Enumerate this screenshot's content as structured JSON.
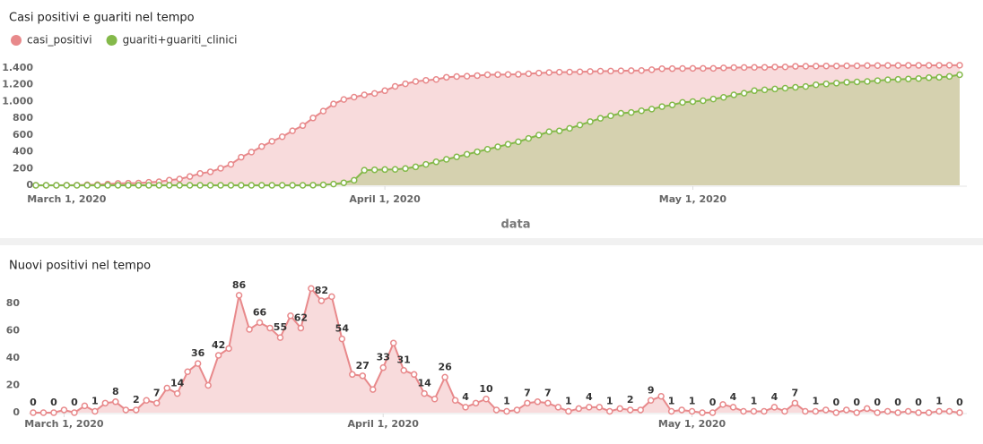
{
  "chart_data": [
    {
      "type": "area",
      "title": "Casi positivi e guariti nel tempo",
      "xlabel": "data",
      "x": [
        "2020-02-27",
        "2020-02-28",
        "2020-02-29",
        "2020-03-01",
        "2020-03-02",
        "2020-03-03",
        "2020-03-04",
        "2020-03-05",
        "2020-03-06",
        "2020-03-07",
        "2020-03-08",
        "2020-03-09",
        "2020-03-10",
        "2020-03-11",
        "2020-03-12",
        "2020-03-13",
        "2020-03-14",
        "2020-03-15",
        "2020-03-16",
        "2020-03-17",
        "2020-03-18",
        "2020-03-19",
        "2020-03-20",
        "2020-03-21",
        "2020-03-22",
        "2020-03-23",
        "2020-03-24",
        "2020-03-25",
        "2020-03-26",
        "2020-03-27",
        "2020-03-28",
        "2020-03-29",
        "2020-03-30",
        "2020-03-31",
        "2020-04-01",
        "2020-04-02",
        "2020-04-03",
        "2020-04-04",
        "2020-04-05",
        "2020-04-06",
        "2020-04-07",
        "2020-04-08",
        "2020-04-09",
        "2020-04-10",
        "2020-04-11",
        "2020-04-12",
        "2020-04-13",
        "2020-04-14",
        "2020-04-15",
        "2020-04-16",
        "2020-04-17",
        "2020-04-18",
        "2020-04-19",
        "2020-04-20",
        "2020-04-21",
        "2020-04-22",
        "2020-04-23",
        "2020-04-24",
        "2020-04-25",
        "2020-04-26",
        "2020-04-27",
        "2020-04-28",
        "2020-04-29",
        "2020-04-30",
        "2020-05-01",
        "2020-05-02",
        "2020-05-03",
        "2020-05-04",
        "2020-05-05",
        "2020-05-06",
        "2020-05-07",
        "2020-05-08",
        "2020-05-09",
        "2020-05-10",
        "2020-05-11",
        "2020-05-12",
        "2020-05-13",
        "2020-05-14",
        "2020-05-15",
        "2020-05-16",
        "2020-05-17",
        "2020-05-18",
        "2020-05-19",
        "2020-05-20",
        "2020-05-21",
        "2020-05-22",
        "2020-05-23",
        "2020-05-24",
        "2020-05-25",
        "2020-05-26",
        "2020-05-27"
      ],
      "xlim": [
        "2020-02-27",
        "2020-05-27"
      ],
      "xticks": [
        {
          "value": "2020-03-01",
          "label": "March 1, 2020"
        },
        {
          "value": "2020-04-01",
          "label": "April 1, 2020"
        },
        {
          "value": "2020-05-01",
          "label": "May 1, 2020"
        }
      ],
      "ylim": [
        0,
        1550
      ],
      "yticks": [
        0,
        200,
        400,
        600,
        800,
        {
          "value": 1000,
          "label": "1.000"
        },
        {
          "value": 1200,
          "label": "1.200"
        },
        {
          "value": 1400,
          "label": "1.400"
        }
      ],
      "legend": "top-left",
      "series": [
        {
          "name": "casi_positivi",
          "color": "#e8898b",
          "values": [
            0,
            0,
            0,
            2,
            2,
            7,
            8,
            15,
            23,
            25,
            27,
            36,
            43,
            61,
            75,
            105,
            141,
            161,
            203,
            250,
            336,
            397,
            463,
            525,
            580,
            651,
            713,
            804,
            886,
            971,
            1025,
            1053,
            1080,
            1097,
            1130,
            1181,
            1212,
            1240,
            1254,
            1264,
            1290,
            1299,
            1303,
            1310,
            1320,
            1322,
            1323,
            1325,
            1332,
            1340,
            1347,
            1351,
            1352,
            1355,
            1359,
            1363,
            1364,
            1367,
            1369,
            1371,
            1380,
            1392,
            1393,
            1395,
            1396,
            1396,
            1396,
            1402,
            1406,
            1407,
            1408,
            1409,
            1413,
            1414,
            1421,
            1422,
            1423,
            1425,
            1425,
            1427,
            1427,
            1430,
            1430,
            1431,
            1431,
            1432,
            1432,
            1432,
            1433,
            1434,
            1434
          ]
        },
        {
          "name": "guariti+guariti_clinici",
          "color": "#84b94a",
          "values": [
            0,
            0,
            0,
            0,
            0,
            0,
            0,
            0,
            0,
            0,
            0,
            0,
            0,
            0,
            0,
            0,
            0,
            0,
            0,
            0,
            0,
            0,
            0,
            0,
            0,
            0,
            0,
            2,
            5,
            15,
            30,
            60,
            180,
            185,
            188,
            190,
            200,
            220,
            250,
            280,
            310,
            340,
            370,
            400,
            430,
            460,
            490,
            520,
            560,
            600,
            640,
            650,
            680,
            720,
            760,
            800,
            830,
            860,
            870,
            890,
            910,
            940,
            960,
            990,
            1000,
            1010,
            1030,
            1050,
            1080,
            1100,
            1130,
            1140,
            1150,
            1160,
            1170,
            1180,
            1200,
            1210,
            1220,
            1230,
            1235,
            1240,
            1250,
            1260,
            1265,
            1270,
            1275,
            1285,
            1290,
            1300,
            1320
          ]
        }
      ]
    },
    {
      "type": "area",
      "title": "Nuovi positivi nel tempo",
      "x": [
        "2020-02-27",
        "2020-02-28",
        "2020-02-29",
        "2020-03-01",
        "2020-03-02",
        "2020-03-03",
        "2020-03-04",
        "2020-03-05",
        "2020-03-06",
        "2020-03-07",
        "2020-03-08",
        "2020-03-09",
        "2020-03-10",
        "2020-03-11",
        "2020-03-12",
        "2020-03-13",
        "2020-03-14",
        "2020-03-15",
        "2020-03-16",
        "2020-03-17",
        "2020-03-18",
        "2020-03-19",
        "2020-03-20",
        "2020-03-21",
        "2020-03-22",
        "2020-03-23",
        "2020-03-24",
        "2020-03-25",
        "2020-03-26",
        "2020-03-27",
        "2020-03-28",
        "2020-03-29",
        "2020-03-30",
        "2020-03-31",
        "2020-04-01",
        "2020-04-02",
        "2020-04-03",
        "2020-04-04",
        "2020-04-05",
        "2020-04-06",
        "2020-04-07",
        "2020-04-08",
        "2020-04-09",
        "2020-04-10",
        "2020-04-11",
        "2020-04-12",
        "2020-04-13",
        "2020-04-14",
        "2020-04-15",
        "2020-04-16",
        "2020-04-17",
        "2020-04-18",
        "2020-04-19",
        "2020-04-20",
        "2020-04-21",
        "2020-04-22",
        "2020-04-23",
        "2020-04-24",
        "2020-04-25",
        "2020-04-26",
        "2020-04-27",
        "2020-04-28",
        "2020-04-29",
        "2020-04-30",
        "2020-05-01",
        "2020-05-02",
        "2020-05-03",
        "2020-05-04",
        "2020-05-05",
        "2020-05-06",
        "2020-05-07",
        "2020-05-08",
        "2020-05-09",
        "2020-05-10",
        "2020-05-11",
        "2020-05-12",
        "2020-05-13",
        "2020-05-14",
        "2020-05-15",
        "2020-05-16",
        "2020-05-17",
        "2020-05-18",
        "2020-05-19",
        "2020-05-20",
        "2020-05-21",
        "2020-05-22",
        "2020-05-23",
        "2020-05-24",
        "2020-05-25",
        "2020-05-26",
        "2020-05-27"
      ],
      "xlim": [
        "2020-02-27",
        "2020-05-27"
      ],
      "xticks": [
        {
          "value": "2020-03-01",
          "label": "March 1, 2020"
        },
        {
          "value": "2020-04-01",
          "label": "April 1, 2020"
        },
        {
          "value": "2020-05-01",
          "label": "May 1, 2020"
        }
      ],
      "ylim": [
        0,
        100
      ],
      "yticks": [
        0,
        20,
        40,
        60,
        80
      ],
      "color": "#e8898b",
      "label_step": 2,
      "values": [
        0,
        0,
        0,
        2,
        0,
        5,
        1,
        7,
        8,
        2,
        2,
        9,
        7,
        18,
        14,
        30,
        36,
        20,
        42,
        47,
        86,
        61,
        66,
        62,
        55,
        71,
        62,
        91,
        82,
        85,
        54,
        28,
        27,
        17,
        33,
        51,
        31,
        28,
        14,
        10,
        26,
        9,
        4,
        7,
        10,
        2,
        1,
        2,
        7,
        8,
        7,
        4,
        1,
        3,
        4,
        4,
        1,
        3,
        2,
        2,
        9,
        12,
        1,
        2,
        1,
        0,
        0,
        6,
        4,
        1,
        1,
        1,
        4,
        1,
        7,
        1,
        1,
        2,
        0,
        2,
        0,
        3,
        0,
        1,
        0,
        1,
        0,
        0,
        1,
        1,
        0
      ]
    }
  ]
}
